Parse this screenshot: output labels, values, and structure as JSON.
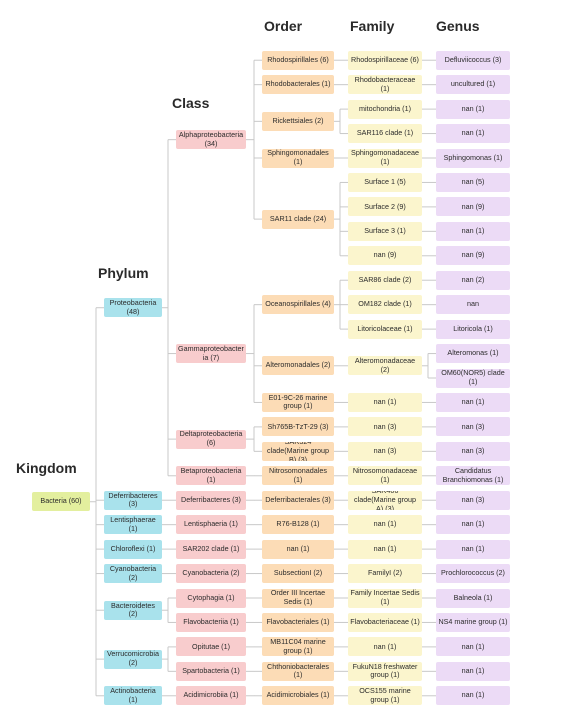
{
  "headers": {
    "kingdom": "Kingdom",
    "phylum": "Phylum",
    "class": "Class",
    "order": "Order",
    "family": "Family",
    "genus": "Genus"
  },
  "tree": {
    "name": "Bacteria (60)",
    "children": [
      {
        "name": "Proteobacteria (48)",
        "children": [
          {
            "name": "Alphaproteobacteria (34)",
            "children": [
              {
                "name": "Rhodospirillales (6)",
                "children": [
                  {
                    "name": "Rhodospirillaceae (6)",
                    "children": [
                      {
                        "name": "Defluviicoccus (3)"
                      }
                    ]
                  }
                ]
              },
              {
                "name": "Rhodobacterales (1)",
                "children": [
                  {
                    "name": "Rhodobacteraceae (1)",
                    "children": [
                      {
                        "name": "uncultured (1)"
                      }
                    ]
                  }
                ]
              },
              {
                "name": "Rickettsiales (2)",
                "children": [
                  {
                    "name": "mitochondria (1)",
                    "children": [
                      {
                        "name": "nan (1)"
                      }
                    ]
                  },
                  {
                    "name": "SAR116 clade (1)",
                    "children": [
                      {
                        "name": "nan (1)"
                      }
                    ]
                  }
                ]
              },
              {
                "name": "Sphingomonadales (1)",
                "children": [
                  {
                    "name": "Sphingomonadaceae (1)",
                    "children": [
                      {
                        "name": "Sphingomonas (1)"
                      }
                    ]
                  }
                ]
              },
              {
                "name": "SAR11 clade (24)",
                "children": [
                  {
                    "name": "Surface 1 (5)",
                    "children": [
                      {
                        "name": "nan (5)"
                      }
                    ]
                  },
                  {
                    "name": "Surface 2 (9)",
                    "children": [
                      {
                        "name": "nan (9)"
                      }
                    ]
                  },
                  {
                    "name": "Surface 3 (1)",
                    "children": [
                      {
                        "name": "nan (1)"
                      }
                    ]
                  },
                  {
                    "name": "nan (9)",
                    "children": [
                      {
                        "name": "nan (9)"
                      }
                    ]
                  }
                ]
              }
            ]
          },
          {
            "name": "Gammaproteobacteria (7)",
            "children": [
              {
                "name": "Oceanospirillales (4)",
                "children": [
                  {
                    "name": "SAR86 clade (2)",
                    "children": [
                      {
                        "name": "nan (2)"
                      }
                    ]
                  },
                  {
                    "name": "OM182 clade (1)",
                    "children": [
                      {
                        "name": "nan"
                      }
                    ]
                  },
                  {
                    "name": "Litoricolaceae (1)",
                    "children": [
                      {
                        "name": "Litoricola (1)"
                      }
                    ]
                  }
                ]
              },
              {
                "name": "Alteromonadales (2)",
                "children": [
                  {
                    "name": "Alteromonadaceae (2)",
                    "children": [
                      {
                        "name": "Alteromonas (1)"
                      },
                      {
                        "name": "OM60(NOR5) clade (1)"
                      }
                    ]
                  }
                ]
              },
              {
                "name": "E01-9C-26 marine group (1)",
                "children": [
                  {
                    "name": "nan (1)",
                    "children": [
                      {
                        "name": "nan (1)"
                      }
                    ]
                  }
                ]
              }
            ]
          },
          {
            "name": "Deltaproteobacteria (6)",
            "children": [
              {
                "name": "Sh765B-TzT-29 (3)",
                "children": [
                  {
                    "name": "nan (3)",
                    "children": [
                      {
                        "name": "nan (3)"
                      }
                    ]
                  }
                ]
              },
              {
                "name": "SAR324 clade(Marine group B) (3)",
                "children": [
                  {
                    "name": "nan (3)",
                    "children": [
                      {
                        "name": "nan (3)"
                      }
                    ]
                  }
                ]
              }
            ]
          },
          {
            "name": "Betaproteobacteria (1)",
            "children": [
              {
                "name": "Nitrosomonadales (1)",
                "children": [
                  {
                    "name": "Nitrosomonadaceae (1)",
                    "children": [
                      {
                        "name": "Candidatus Branchiomonas (1)"
                      }
                    ]
                  }
                ]
              }
            ]
          }
        ]
      },
      {
        "name": "Deferribacteres (3)",
        "children": [
          {
            "name": "Deferribacteres (3)",
            "children": [
              {
                "name": "Deferribacterales (3)",
                "children": [
                  {
                    "name": "SAR406 clade(Marine group A) (3)",
                    "children": [
                      {
                        "name": "nan (3)"
                      }
                    ]
                  }
                ]
              }
            ]
          }
        ]
      },
      {
        "name": "Lentisphaerae (1)",
        "children": [
          {
            "name": "Lentisphaeria (1)",
            "children": [
              {
                "name": "R76-B128 (1)",
                "children": [
                  {
                    "name": "nan (1)",
                    "children": [
                      {
                        "name": "nan (1)"
                      }
                    ]
                  }
                ]
              }
            ]
          }
        ]
      },
      {
        "name": "Chloroflexi (1)",
        "children": [
          {
            "name": "SAR202 clade (1)",
            "children": [
              {
                "name": "nan (1)",
                "children": [
                  {
                    "name": "nan (1)",
                    "children": [
                      {
                        "name": "nan (1)"
                      }
                    ]
                  }
                ]
              }
            ]
          }
        ]
      },
      {
        "name": "Cyanobacteria (2)",
        "children": [
          {
            "name": "Cyanobacteria (2)",
            "children": [
              {
                "name": "SubsectionI (2)",
                "children": [
                  {
                    "name": "FamilyI (2)",
                    "children": [
                      {
                        "name": "Prochlorococcus (2)"
                      }
                    ]
                  }
                ]
              }
            ]
          }
        ]
      },
      {
        "name": "Bacteroidetes (2)",
        "children": [
          {
            "name": "Cytophagia (1)",
            "children": [
              {
                "name": "Order III Incertae Sedis (1)",
                "children": [
                  {
                    "name": "Family Incertae Sedis (1)",
                    "children": [
                      {
                        "name": "Balneola (1)"
                      }
                    ]
                  }
                ]
              }
            ]
          },
          {
            "name": "Flavobacteriia (1)",
            "children": [
              {
                "name": "Flavobacteriales (1)",
                "children": [
                  {
                    "name": "Flavobacteriaceae (1)",
                    "children": [
                      {
                        "name": "NS4 marine group (1)"
                      }
                    ]
                  }
                ]
              }
            ]
          }
        ]
      },
      {
        "name": "Verrucomicrobia (2)",
        "children": [
          {
            "name": "Opitutae (1)",
            "children": [
              {
                "name": "MB11C04 marine group (1)",
                "children": [
                  {
                    "name": "nan (1)",
                    "children": [
                      {
                        "name": "nan (1)"
                      }
                    ]
                  }
                ]
              }
            ]
          },
          {
            "name": "Spartobacteria (1)",
            "children": [
              {
                "name": "Chthoniobacterales (1)",
                "children": [
                  {
                    "name": "FukuN18 freshwater group (1)",
                    "children": [
                      {
                        "name": "nan (1)"
                      }
                    ]
                  }
                ]
              }
            ]
          }
        ]
      },
      {
        "name": "Actinobacteria (1)",
        "children": [
          {
            "name": "Acidimicrobiia (1)",
            "children": [
              {
                "name": "Acidimicrobiales (1)",
                "children": [
                  {
                    "name": "OCS155 marine group (1)",
                    "children": [
                      {
                        "name": "nan (1)"
                      }
                    ]
                  }
                ]
              }
            ]
          }
        ]
      }
    ]
  }
}
